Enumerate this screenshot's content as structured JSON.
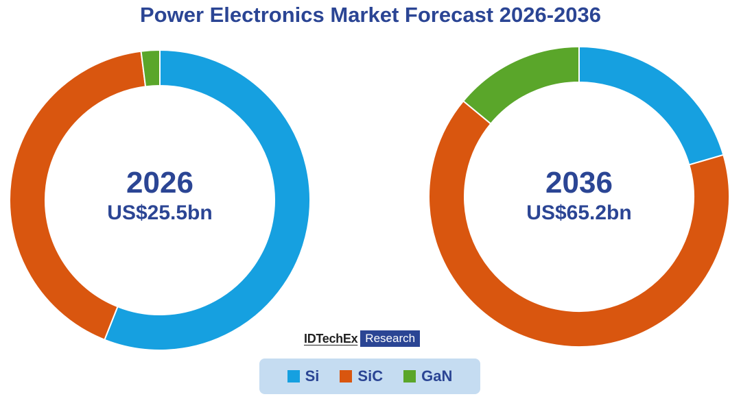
{
  "title": "Power Electronics Market Forecast 2026-2036",
  "logo": {
    "brand": "IDTechEx",
    "tag": "Research"
  },
  "colors": {
    "Si": "#16a0e0",
    "SiC": "#d9560f",
    "GaN": "#5aa62a",
    "text": "#2b4594"
  },
  "legend": [
    {
      "name": "Si",
      "color": "#16a0e0"
    },
    {
      "name": "SiC",
      "color": "#d9560f"
    },
    {
      "name": "GaN",
      "color": "#5aa62a"
    }
  ],
  "chart_data": [
    {
      "type": "pie",
      "subtype": "donut",
      "year": "2026",
      "total": "US$25.5bn",
      "categories": [
        "Si",
        "SiC",
        "GaN"
      ],
      "values": [
        56,
        42,
        2
      ],
      "unit": "% share (estimated)"
    },
    {
      "type": "pie",
      "subtype": "donut",
      "year": "2036",
      "total": "US$65.2bn",
      "categories": [
        "Si",
        "SiC",
        "GaN"
      ],
      "values": [
        20.5,
        65.5,
        14
      ],
      "unit": "% share (estimated)"
    }
  ]
}
